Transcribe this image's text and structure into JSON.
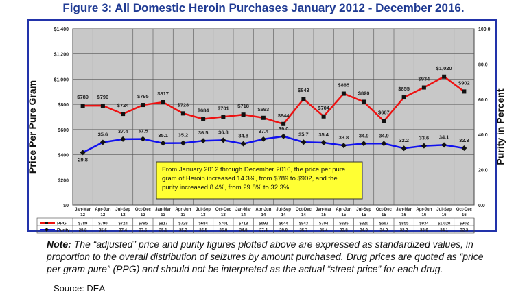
{
  "figure": {
    "title": "Figure 3: All Domestic Heroin Purchases January 2012 - December 2016.",
    "note_label": "Note:",
    "note_text": "The “adjusted” price and purity figures plotted above are expressed as standardized values, in proportion to the overall distribution of seizures by amount purchased. Drug prices are quoted as “price per gram pure” (PPG) and should not be interpreted as the actual “street price” for each drug.",
    "source": "Source:  DEA"
  },
  "chart_data": {
    "type": "line",
    "ylabel": "Price Per Pure Gram",
    "y2label": "Purity in Percent",
    "ylim": [
      0,
      1400
    ],
    "y2lim": [
      0,
      100
    ],
    "yticks": [
      "$0",
      "$200",
      "$400",
      "$600",
      "$800",
      "$1,000",
      "$1,200",
      "$1,400"
    ],
    "y2ticks": [
      "0.0",
      "20.0",
      "40.0",
      "60.0",
      "80.0",
      "100.0"
    ],
    "categories": [
      [
        "Jan-Mar",
        "12"
      ],
      [
        "Apr-Jun",
        "12"
      ],
      [
        "Jul-Sep",
        "12"
      ],
      [
        "Oct-Dec",
        "12"
      ],
      [
        "Jan-Mar",
        "13"
      ],
      [
        "Apr-Jun",
        "13"
      ],
      [
        "Jul-Sep",
        "13"
      ],
      [
        "Oct-Dec",
        "13"
      ],
      [
        "Jan-Mar",
        "14"
      ],
      [
        "Apr-Jun",
        "14"
      ],
      [
        "Jul-Sep",
        "14"
      ],
      [
        "Oct-Dec",
        "14"
      ],
      [
        "Jan-Mar",
        "15"
      ],
      [
        "Apr-Jun",
        "15"
      ],
      [
        "Jul-Sep",
        "15"
      ],
      [
        "Oct-Dec",
        "15"
      ],
      [
        "Jan-Mar",
        "16"
      ],
      [
        "Apr-Jun",
        "16"
      ],
      [
        "Jul-Sep",
        "16"
      ],
      [
        "Oct-Dec",
        "16"
      ]
    ],
    "series": [
      {
        "name": "PPG",
        "axis": "left",
        "color": "#ee1111",
        "values": [
          789,
          790,
          724,
          795,
          817,
          728,
          684,
          701,
          718,
          693,
          644,
          843,
          704,
          885,
          820,
          667,
          855,
          934,
          1020,
          902
        ],
        "labels": [
          "$789",
          "$790",
          "$724",
          "$795",
          "$817",
          "$728",
          "$684",
          "$701",
          "$718",
          "$693",
          "$644",
          "$843",
          "$704",
          "$885",
          "$820",
          "$667",
          "$855",
          "$934",
          "$1,020",
          "$902"
        ]
      },
      {
        "name": "Purity",
        "axis": "right",
        "color": "#1111ee",
        "values": [
          29.8,
          35.6,
          37.4,
          37.5,
          35.1,
          35.2,
          36.5,
          36.8,
          34.8,
          37.4,
          39.0,
          35.7,
          35.4,
          33.8,
          34.9,
          34.9,
          32.2,
          33.6,
          34.1,
          32.3
        ],
        "labels": [
          "29.8",
          "35.6",
          "37.4",
          "37.5",
          "35.1",
          "35.2",
          "36.5",
          "36.8",
          "34.8",
          "37.4",
          "39.0",
          "35.7",
          "35.4",
          "33.8",
          "34.9",
          "34.9",
          "32.2",
          "33.6",
          "34.1",
          "32.3"
        ]
      }
    ],
    "annotation": "From January 2012 through December 2016, the price per pure gram of Heroin increased 14.3%, from $789 to $902, and the purity increased 8.4%, from 29.8% to 32.3%."
  }
}
